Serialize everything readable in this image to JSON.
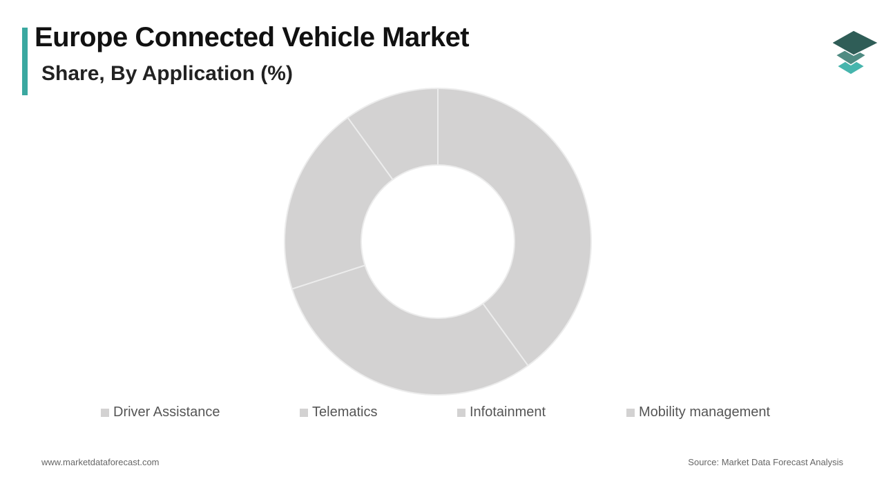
{
  "header": {
    "title": "Europe Connected Vehicle Market",
    "subtitle": "Share, By Application (%)",
    "accent_color": "#3aa8a0"
  },
  "logo": {
    "icon": "stacked-layers-icon",
    "colors": [
      "#2f5d57",
      "#4f8b82",
      "#46b5ad"
    ]
  },
  "chart_data": {
    "type": "pie",
    "style": "donut",
    "title": "Share, By Application (%)",
    "categories": [
      "Driver Assistance",
      "Telematics",
      "Infotainment",
      "Mobility management"
    ],
    "values": [
      40,
      30,
      20,
      10
    ],
    "colors": [
      "#d3d2d2",
      "#d3d2d2",
      "#d3d2d2",
      "#d3d2d2"
    ],
    "legend": "bottom"
  },
  "footer": {
    "website": "www.marketdataforecast.com",
    "source": "Source: Market Data Forecast Analysis"
  }
}
